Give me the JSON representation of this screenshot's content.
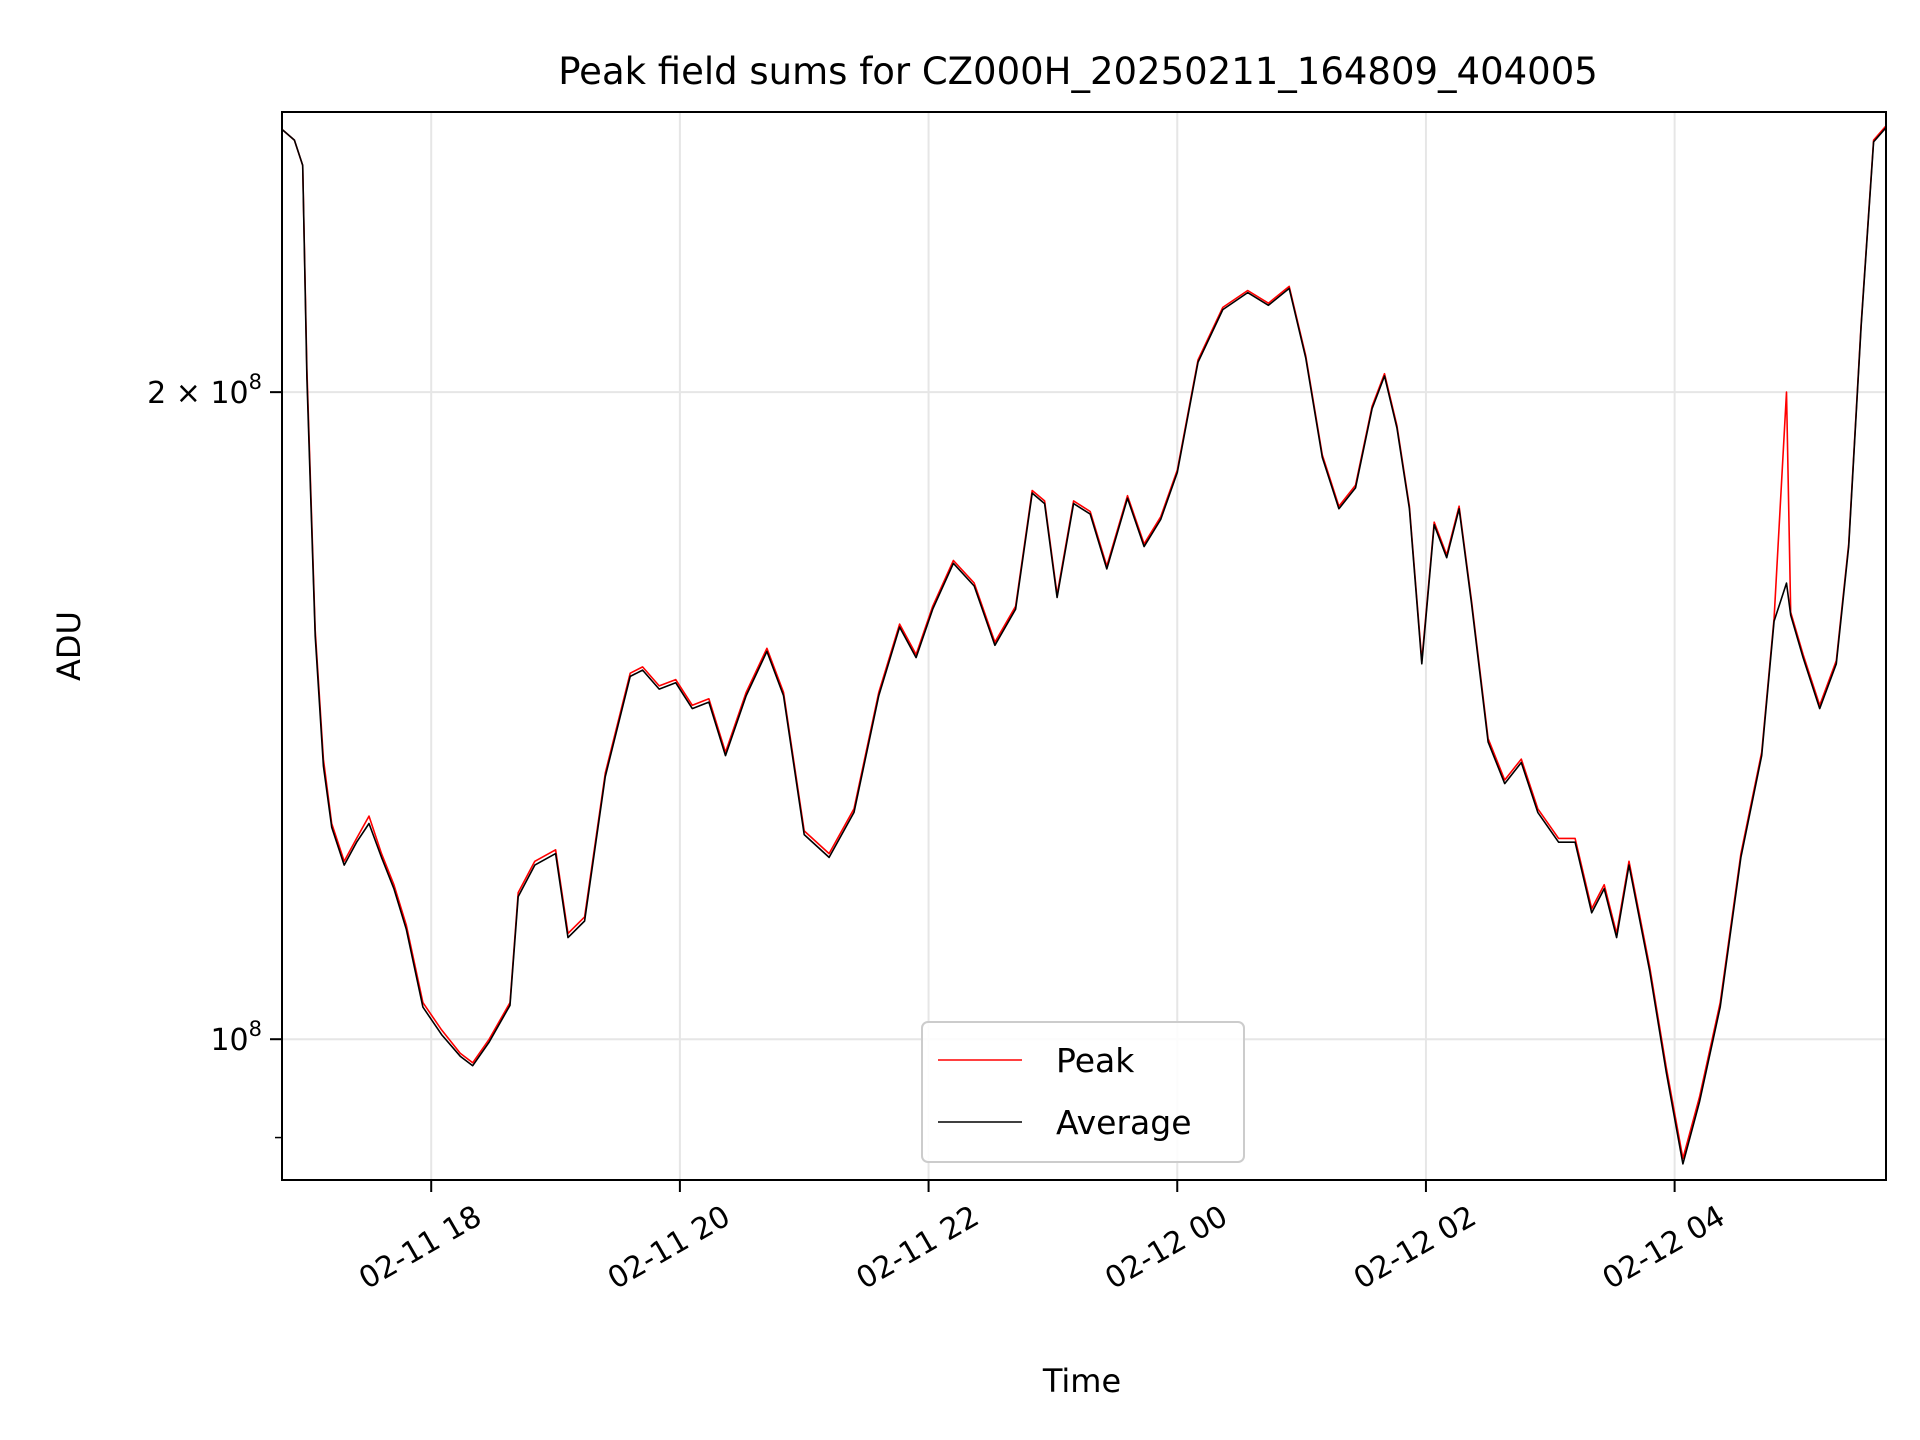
{
  "chart_data": {
    "type": "line",
    "title": "Peak field sums for CZ000H_20250211_164809_404005",
    "xlabel": "Time",
    "ylabel": "ADU",
    "x_start": "02-11 16:48",
    "x_end": "02-12 05:42",
    "xlim_hours_from_0211_1600": [
      16.8,
      29.7
    ],
    "ylim": [
      86000000,
      270000000
    ],
    "y_scale": "log",
    "grid": true,
    "legend_position": "lower center",
    "x_ticks": [
      "02-11 18",
      "02-11 20",
      "02-11 22",
      "02-12 00",
      "02-12 02",
      "02-12 04"
    ],
    "y_ticks": [
      {
        "value": 100000000,
        "base": "10",
        "exp": "8",
        "coef": ""
      },
      {
        "value": 200000000,
        "base": "10",
        "exp": "8",
        "coef": "2 × "
      }
    ],
    "colors": {
      "peak": "#ff0000",
      "average": "#000000",
      "grid": "#e6e6e6"
    },
    "series": [
      {
        "name": "Peak",
        "color": "#ff0000",
        "points": [
          [
            "02-11 16:48",
            265000000
          ],
          [
            "02-11 16:54",
            262000000
          ],
          [
            "02-11 16:58",
            255000000
          ],
          [
            "02-11 17:00",
            205000000
          ],
          [
            "02-11 17:04",
            155000000
          ],
          [
            "02-11 17:08",
            135000000
          ],
          [
            "02-11 17:12",
            126000000
          ],
          [
            "02-11 17:18",
            121000000
          ],
          [
            "02-11 17:24",
            124000000
          ],
          [
            "02-11 17:30",
            127000000
          ],
          [
            "02-11 17:36",
            122000000
          ],
          [
            "02-11 17:42",
            118000000
          ],
          [
            "02-11 17:48",
            113000000
          ],
          [
            "02-11 17:56",
            104000000
          ],
          [
            "02-11 18:05",
            101000000
          ],
          [
            "02-11 18:14",
            98500000
          ],
          [
            "02-11 18:20",
            97500000
          ],
          [
            "02-11 18:28",
            100000000
          ],
          [
            "02-11 18:38",
            104000000
          ],
          [
            "02-11 18:42",
            117000000
          ],
          [
            "02-11 18:50",
            121000000
          ],
          [
            "02-11 19:00",
            122500000
          ],
          [
            "02-11 19:06",
            112000000
          ],
          [
            "02-11 19:14",
            114000000
          ],
          [
            "02-11 19:24",
            133000000
          ],
          [
            "02-11 19:36",
            148000000
          ],
          [
            "02-11 19:42",
            149000000
          ],
          [
            "02-11 19:50",
            146000000
          ],
          [
            "02-11 19:58",
            147000000
          ],
          [
            "02-11 20:06",
            143000000
          ],
          [
            "02-11 20:14",
            144000000
          ],
          [
            "02-11 20:22",
            136000000
          ],
          [
            "02-11 20:32",
            145000000
          ],
          [
            "02-11 20:42",
            152000000
          ],
          [
            "02-11 20:50",
            145000000
          ],
          [
            "02-11 21:00",
            125000000
          ],
          [
            "02-11 21:12",
            122000000
          ],
          [
            "02-11 21:24",
            128000000
          ],
          [
            "02-11 21:36",
            145000000
          ],
          [
            "02-11 21:46",
            156000000
          ],
          [
            "02-11 21:54",
            151000000
          ],
          [
            "02-11 22:02",
            159000000
          ],
          [
            "02-11 22:12",
            167000000
          ],
          [
            "02-11 22:22",
            163000000
          ],
          [
            "02-11 22:32",
            153000000
          ],
          [
            "02-11 22:42",
            159000000
          ],
          [
            "02-11 22:50",
            180000000
          ],
          [
            "02-11 22:56",
            178000000
          ],
          [
            "02-11 23:02",
            161000000
          ],
          [
            "02-11 23:10",
            178000000
          ],
          [
            "02-11 23:18",
            176000000
          ],
          [
            "02-11 23:26",
            166000000
          ],
          [
            "02-11 23:36",
            179000000
          ],
          [
            "02-11 23:44",
            170000000
          ],
          [
            "02-11 23:52",
            175000000
          ],
          [
            "02-12 00:00",
            184000000
          ],
          [
            "02-12 00:10",
            207000000
          ],
          [
            "02-12 00:22",
            219000000
          ],
          [
            "02-12 00:34",
            223000000
          ],
          [
            "02-12 00:44",
            220000000
          ],
          [
            "02-12 00:54",
            224000000
          ],
          [
            "02-12 01:02",
            208000000
          ],
          [
            "02-12 01:10",
            187000000
          ],
          [
            "02-12 01:18",
            177000000
          ],
          [
            "02-12 01:26",
            181000000
          ],
          [
            "02-12 01:34",
            197000000
          ],
          [
            "02-12 01:40",
            204000000
          ],
          [
            "02-12 01:46",
            193000000
          ],
          [
            "02-12 01:52",
            177000000
          ],
          [
            "02-12 01:58",
            150000000
          ],
          [
            "02-12 02:04",
            174000000
          ],
          [
            "02-12 02:10",
            168000000
          ],
          [
            "02-12 02:16",
            177000000
          ],
          [
            "02-12 02:22",
            160000000
          ],
          [
            "02-12 02:30",
            138000000
          ],
          [
            "02-12 02:38",
            132000000
          ],
          [
            "02-12 02:46",
            135000000
          ],
          [
            "02-12 02:54",
            128000000
          ],
          [
            "02-12 03:04",
            124000000
          ],
          [
            "02-12 03:12",
            124000000
          ],
          [
            "02-12 03:20",
            115000000
          ],
          [
            "02-12 03:26",
            118000000
          ],
          [
            "02-12 03:32",
            112000000
          ],
          [
            "02-12 03:38",
            121000000
          ],
          [
            "02-12 03:48",
            108000000
          ],
          [
            "02-12 03:56",
            97000000
          ],
          [
            "02-12 04:04",
            88000000
          ],
          [
            "02-12 04:12",
            94000000
          ],
          [
            "02-12 04:22",
            104000000
          ],
          [
            "02-12 04:32",
            122000000
          ],
          [
            "02-12 04:42",
            136000000
          ],
          [
            "02-12 04:48",
            157000000
          ],
          [
            "02-12 04:54",
            200000000
          ],
          [
            "02-12 04:56",
            158000000
          ],
          [
            "02-12 05:02",
            151000000
          ],
          [
            "02-12 05:10",
            143000000
          ],
          [
            "02-12 05:18",
            150000000
          ],
          [
            "02-12 05:24",
            170000000
          ],
          [
            "02-12 05:30",
            215000000
          ],
          [
            "02-12 05:36",
            262000000
          ],
          [
            "02-12 05:42",
            266000000
          ]
        ]
      },
      {
        "name": "Average",
        "color": "#000000",
        "points": [
          [
            "02-11 16:48",
            265000000
          ],
          [
            "02-11 16:54",
            262000000
          ],
          [
            "02-11 16:58",
            255000000
          ],
          [
            "02-11 17:00",
            203000000
          ],
          [
            "02-11 17:04",
            154000000
          ],
          [
            "02-11 17:08",
            134000000
          ],
          [
            "02-11 17:12",
            125500000
          ],
          [
            "02-11 17:18",
            120500000
          ],
          [
            "02-11 17:24",
            123500000
          ],
          [
            "02-11 17:30",
            126000000
          ],
          [
            "02-11 17:36",
            121500000
          ],
          [
            "02-11 17:42",
            117500000
          ],
          [
            "02-11 17:48",
            112500000
          ],
          [
            "02-11 17:56",
            103500000
          ],
          [
            "02-11 18:05",
            100500000
          ],
          [
            "02-11 18:14",
            98200000
          ],
          [
            "02-11 18:20",
            97200000
          ],
          [
            "02-11 18:28",
            99700000
          ],
          [
            "02-11 18:38",
            103700000
          ],
          [
            "02-11 18:42",
            116500000
          ],
          [
            "02-11 18:50",
            120500000
          ],
          [
            "02-11 19:00",
            122000000
          ],
          [
            "02-11 19:06",
            111500000
          ],
          [
            "02-11 19:14",
            113500000
          ],
          [
            "02-11 19:24",
            132500000
          ],
          [
            "02-11 19:36",
            147500000
          ],
          [
            "02-11 19:42",
            148500000
          ],
          [
            "02-11 19:50",
            145500000
          ],
          [
            "02-11 19:58",
            146500000
          ],
          [
            "02-11 20:06",
            142500000
          ],
          [
            "02-11 20:14",
            143500000
          ],
          [
            "02-11 20:22",
            135500000
          ],
          [
            "02-11 20:32",
            144500000
          ],
          [
            "02-11 20:42",
            151500000
          ],
          [
            "02-11 20:50",
            144500000
          ],
          [
            "02-11 21:00",
            124500000
          ],
          [
            "02-11 21:12",
            121500000
          ],
          [
            "02-11 21:24",
            127500000
          ],
          [
            "02-11 21:36",
            144500000
          ],
          [
            "02-11 21:46",
            155500000
          ],
          [
            "02-11 21:54",
            150500000
          ],
          [
            "02-11 22:02",
            158500000
          ],
          [
            "02-11 22:12",
            166500000
          ],
          [
            "02-11 22:22",
            162500000
          ],
          [
            "02-11 22:32",
            152500000
          ],
          [
            "02-11 22:42",
            158500000
          ],
          [
            "02-11 22:50",
            179500000
          ],
          [
            "02-11 22:56",
            177500000
          ],
          [
            "02-11 23:02",
            160500000
          ],
          [
            "02-11 23:10",
            177500000
          ],
          [
            "02-11 23:18",
            175500000
          ],
          [
            "02-11 23:26",
            165500000
          ],
          [
            "02-11 23:36",
            178500000
          ],
          [
            "02-11 23:44",
            169500000
          ],
          [
            "02-11 23:52",
            174500000
          ],
          [
            "02-12 00:00",
            183500000
          ],
          [
            "02-12 00:10",
            206500000
          ],
          [
            "02-12 00:22",
            218500000
          ],
          [
            "02-12 00:34",
            222500000
          ],
          [
            "02-12 00:44",
            219500000
          ],
          [
            "02-12 00:54",
            223500000
          ],
          [
            "02-12 01:02",
            207500000
          ],
          [
            "02-12 01:10",
            186500000
          ],
          [
            "02-12 01:18",
            176500000
          ],
          [
            "02-12 01:26",
            180500000
          ],
          [
            "02-12 01:34",
            196500000
          ],
          [
            "02-12 01:40",
            203500000
          ],
          [
            "02-12 01:46",
            192500000
          ],
          [
            "02-12 01:52",
            176500000
          ],
          [
            "02-12 01:58",
            149500000
          ],
          [
            "02-12 02:04",
            173500000
          ],
          [
            "02-12 02:10",
            167500000
          ],
          [
            "02-12 02:16",
            176500000
          ],
          [
            "02-12 02:22",
            159500000
          ],
          [
            "02-12 02:30",
            137500000
          ],
          [
            "02-12 02:38",
            131500000
          ],
          [
            "02-12 02:46",
            134500000
          ],
          [
            "02-12 02:54",
            127500000
          ],
          [
            "02-12 03:04",
            123500000
          ],
          [
            "02-12 03:12",
            123500000
          ],
          [
            "02-12 03:20",
            114500000
          ],
          [
            "02-12 03:26",
            117500000
          ],
          [
            "02-12 03:32",
            111500000
          ],
          [
            "02-12 03:38",
            120500000
          ],
          [
            "02-12 03:48",
            107500000
          ],
          [
            "02-12 03:56",
            96500000
          ],
          [
            "02-12 04:04",
            87500000
          ],
          [
            "02-12 04:12",
            93500000
          ],
          [
            "02-12 04:22",
            103500000
          ],
          [
            "02-12 04:32",
            121500000
          ],
          [
            "02-12 04:42",
            135500000
          ],
          [
            "02-12 04:48",
            156500000
          ],
          [
            "02-12 04:54",
            163000000
          ],
          [
            "02-12 04:56",
            157500000
          ],
          [
            "02-12 05:02",
            150500000
          ],
          [
            "02-12 05:10",
            142500000
          ],
          [
            "02-12 05:18",
            149500000
          ],
          [
            "02-12 05:24",
            169500000
          ],
          [
            "02-12 05:30",
            214500000
          ],
          [
            "02-12 05:36",
            261500000
          ],
          [
            "02-12 05:42",
            265500000
          ]
        ]
      }
    ]
  }
}
